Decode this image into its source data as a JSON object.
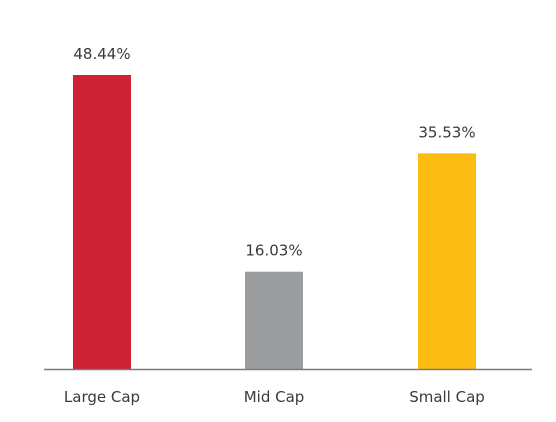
{
  "chart_data": {
    "type": "bar",
    "categories": [
      "Large Cap",
      "Mid Cap",
      "Small Cap"
    ],
    "values": [
      48.44,
      16.03,
      35.53
    ],
    "data_labels": [
      "48.44%",
      "16.03%",
      "35.53%"
    ],
    "colors": [
      "#cc2234",
      "#9b9c9e",
      "#fcbc12"
    ],
    "axis_color": "#7a7a7a",
    "ylim": [
      0,
      50
    ],
    "grid": false,
    "legend": "none",
    "title": "",
    "xlabel": "",
    "ylabel": ""
  }
}
